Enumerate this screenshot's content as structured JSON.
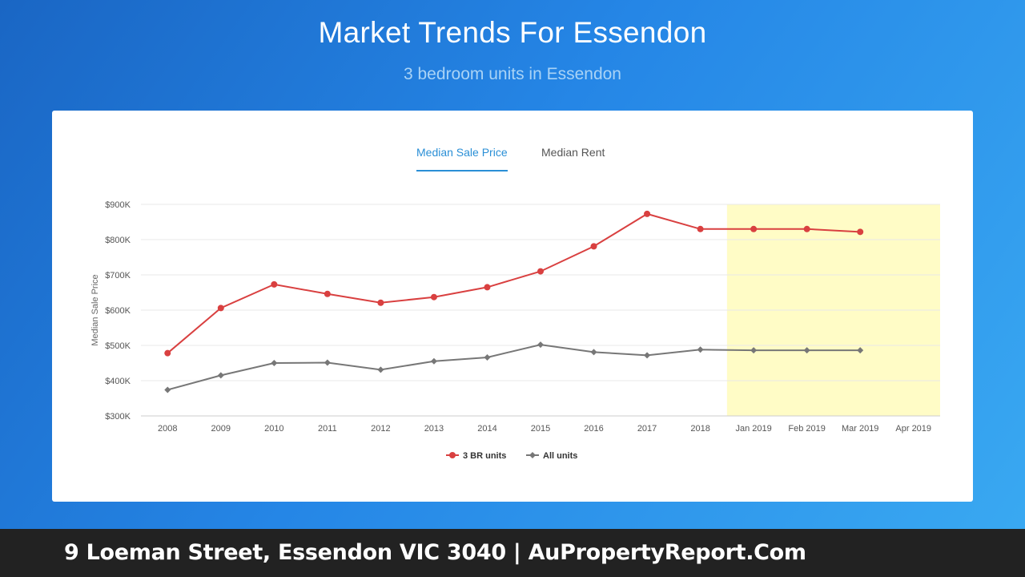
{
  "header": {
    "title": "Market Trends For Essendon",
    "subtitle": "3 bedroom units in Essendon"
  },
  "tabs": [
    {
      "label": "Median Sale Price",
      "active": true
    },
    {
      "label": "Median Rent",
      "active": false
    }
  ],
  "footer": {
    "text": "9 Loeman Street, Essendon VIC 3040 | AuPropertyReport.Com"
  },
  "colors": {
    "series_3br": "#d94040",
    "series_all": "#777777",
    "highlight": "#fffcc6",
    "active_tab": "#2a8fd6"
  },
  "chart_data": {
    "type": "line",
    "title": "",
    "xlabel": "",
    "ylabel": "Median Sale Price",
    "ylim": [
      300000,
      900000
    ],
    "yticks": [
      300000,
      400000,
      500000,
      600000,
      700000,
      800000,
      900000
    ],
    "ytick_labels": [
      "$300K",
      "$400K",
      "$500K",
      "$600K",
      "$700K",
      "$800K",
      "$900K"
    ],
    "categories": [
      "2008",
      "2009",
      "2010",
      "2011",
      "2012",
      "2013",
      "2014",
      "2015",
      "2016",
      "2017",
      "2018",
      "Jan 2019",
      "Feb 2019",
      "Mar 2019",
      "Apr 2019"
    ],
    "series": [
      {
        "name": "3 BR units",
        "marker": "circle",
        "values": [
          478000,
          606000,
          673000,
          646000,
          621000,
          637000,
          665000,
          710000,
          781000,
          873000,
          830000,
          830000,
          830000,
          822000,
          null
        ]
      },
      {
        "name": "All units",
        "marker": "diamond",
        "values": [
          374000,
          415000,
          450000,
          451000,
          431000,
          455000,
          466000,
          502000,
          481000,
          472000,
          488000,
          486000,
          486000,
          486000,
          null
        ]
      }
    ],
    "highlight_range": [
      "Jan 2019",
      "Apr 2019"
    ],
    "grid": true,
    "legend_position": "bottom-center"
  }
}
